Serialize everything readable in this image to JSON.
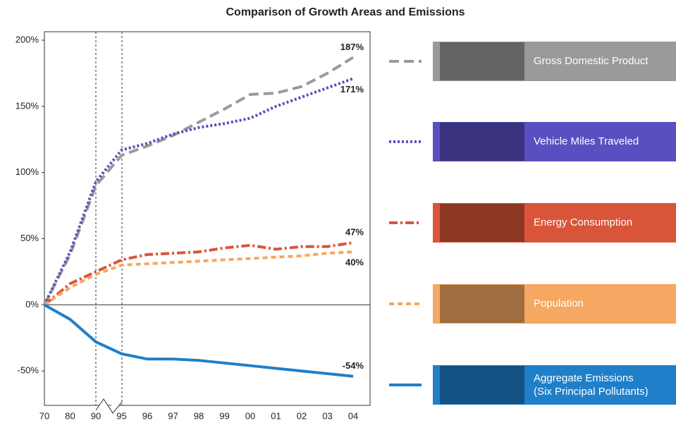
{
  "chart_data": {
    "type": "line",
    "title": "Comparison of Growth Areas and Emissions",
    "categories": [
      "70",
      "80",
      "90",
      "95",
      "96",
      "97",
      "98",
      "99",
      "00",
      "01",
      "02",
      "03",
      "04"
    ],
    "ylim": [
      -76,
      200
    ],
    "yticks": [
      {
        "value": -50,
        "label": "-50%"
      },
      {
        "value": 0,
        "label": "0%"
      },
      {
        "value": 50,
        "label": "50%"
      },
      {
        "value": 100,
        "label": "100%"
      },
      {
        "value": 150,
        "label": "150%"
      },
      {
        "value": 200,
        "label": "200%"
      }
    ],
    "series": [
      {
        "name": "Gross Domestic Product",
        "color": "#9a9a9a",
        "line_style": "dashed",
        "values": [
          0,
          38,
          90,
          113,
          120,
          128,
          138,
          148,
          159,
          160,
          165,
          175,
          187
        ],
        "value_labels": [
          null,
          null,
          null,
          null,
          null,
          null,
          null,
          null,
          null,
          null,
          null,
          null,
          "187%"
        ]
      },
      {
        "name": "Vehicle Miles Traveled",
        "color": "#5a4fc0",
        "line_style": "dotted",
        "values": [
          0,
          40,
          93,
          117,
          122,
          129,
          134,
          137,
          141,
          150,
          157,
          164,
          171
        ],
        "value_labels": [
          null,
          null,
          null,
          null,
          null,
          null,
          null,
          null,
          null,
          null,
          null,
          null,
          "171%"
        ]
      },
      {
        "name": "Energy Consumption",
        "color": "#d9553a",
        "line_style": "dashdot",
        "values": [
          0,
          16,
          25,
          34,
          38,
          39,
          40,
          43,
          45,
          42,
          44,
          44,
          47
        ],
        "value_labels": [
          null,
          null,
          null,
          null,
          null,
          null,
          null,
          null,
          null,
          null,
          null,
          null,
          "47%"
        ]
      },
      {
        "name": "Population",
        "color": "#f4a862",
        "line_style": "shortdash",
        "values": [
          0,
          13,
          23,
          30,
          31,
          32,
          33,
          34,
          35,
          36,
          37,
          39,
          40
        ],
        "value_labels": [
          null,
          null,
          null,
          null,
          null,
          null,
          null,
          null,
          null,
          null,
          null,
          null,
          "40%"
        ]
      },
      {
        "name": "Aggregate Emissions (Six Principal Pollutants)",
        "color": "#1f7fc9",
        "line_style": "solid",
        "values": [
          0,
          -11,
          -28,
          -37,
          -41,
          -41,
          -42,
          -44,
          -46,
          -48,
          -50,
          -52,
          -54
        ],
        "value_labels": [
          null,
          null,
          null,
          null,
          null,
          null,
          null,
          null,
          null,
          null,
          null,
          null,
          "-54%"
        ]
      }
    ]
  }
}
